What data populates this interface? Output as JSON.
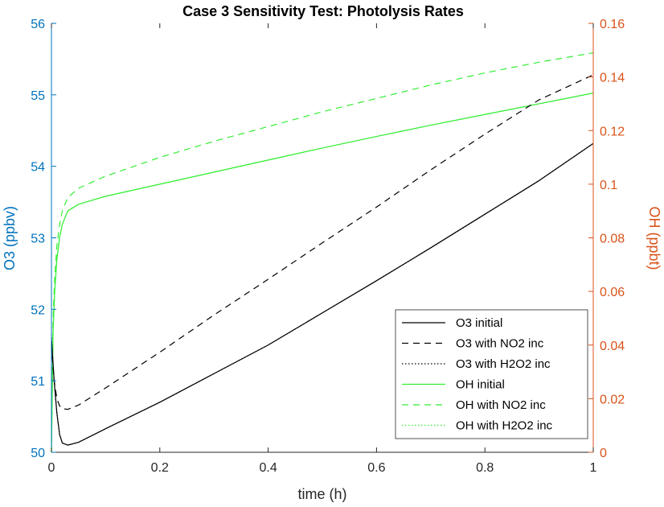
{
  "chart_data": {
    "type": "line",
    "title": "Case 3 Sensitivity Test: Photolysis Rates",
    "xlabel": "time (h)",
    "ylabel_left": "O3 (ppbv)",
    "ylabel_right": "OH (ppbt)",
    "xlim": [
      0,
      1
    ],
    "ylim_left": [
      50,
      56
    ],
    "ylim_right": [
      0,
      0.16
    ],
    "x_ticks": [
      "0",
      "0.2",
      "0.4",
      "0.6",
      "0.8",
      "1"
    ],
    "y_left_ticks": [
      "50",
      "51",
      "52",
      "53",
      "54",
      "55",
      "56"
    ],
    "y_right_ticks": [
      "0",
      "0.02",
      "0.04",
      "0.06",
      "0.08",
      "0.1",
      "0.12",
      "0.14",
      "0.16"
    ],
    "grid": false,
    "legend_position": "bottom-right",
    "colors": {
      "left_axis": "#0072BD",
      "right_axis": "#D95319",
      "o3": "#000000",
      "oh": "#33EE33"
    },
    "series": [
      {
        "name": "O3 initial",
        "axis": "left",
        "color": "#000000",
        "dash": "solid",
        "x": [
          0,
          0.005,
          0.01,
          0.015,
          0.02,
          0.03,
          0.05,
          0.1,
          0.2,
          0.3,
          0.4,
          0.5,
          0.6,
          0.7,
          0.8,
          0.9,
          1.0
        ],
        "y": [
          51.6,
          51.0,
          50.55,
          50.25,
          50.13,
          50.1,
          50.14,
          50.33,
          50.7,
          51.1,
          51.5,
          51.95,
          52.4,
          52.86,
          53.33,
          53.8,
          54.32
        ]
      },
      {
        "name": "O3 with NO2 inc",
        "axis": "left",
        "color": "#000000",
        "dash": "8,6",
        "x": [
          0,
          0.005,
          0.01,
          0.015,
          0.02,
          0.03,
          0.05,
          0.1,
          0.2,
          0.3,
          0.4,
          0.5,
          0.6,
          0.7,
          0.8,
          0.9,
          1.0
        ],
        "y": [
          51.5,
          51.0,
          50.75,
          50.65,
          50.61,
          50.6,
          50.66,
          50.9,
          51.4,
          51.92,
          52.42,
          52.93,
          53.43,
          53.95,
          54.45,
          54.93,
          55.28
        ]
      },
      {
        "name": "O3 with H2O2 inc",
        "axis": "left",
        "color": "#000000",
        "dash": "1.5,2.5",
        "x": [
          0,
          0.005,
          0.01,
          0.015,
          0.02,
          0.03,
          0.05,
          0.1,
          0.2,
          0.3,
          0.4,
          0.5,
          0.6,
          0.7,
          0.8,
          0.9,
          1.0
        ],
        "y": [
          51.6,
          51.0,
          50.55,
          50.25,
          50.13,
          50.1,
          50.14,
          50.33,
          50.7,
          51.1,
          51.5,
          51.95,
          52.4,
          52.86,
          53.33,
          53.8,
          54.32
        ]
      },
      {
        "name": "OH initial",
        "axis": "right",
        "color": "#33EE33",
        "dash": "solid",
        "x": [
          0,
          0.003,
          0.006,
          0.01,
          0.015,
          0.02,
          0.03,
          0.05,
          0.1,
          0.2,
          0.3,
          0.4,
          0.5,
          0.6,
          0.7,
          0.8,
          0.9,
          1.0
        ],
        "y": [
          0.0,
          0.045,
          0.06,
          0.072,
          0.08,
          0.085,
          0.09,
          0.0925,
          0.0955,
          0.1,
          0.1045,
          0.109,
          0.1135,
          0.1178,
          0.122,
          0.126,
          0.13,
          0.134
        ]
      },
      {
        "name": "OH with NO2 inc",
        "axis": "right",
        "color": "#33EE33",
        "dash": "8,6",
        "x": [
          0,
          0.003,
          0.006,
          0.01,
          0.015,
          0.02,
          0.03,
          0.05,
          0.1,
          0.2,
          0.3,
          0.4,
          0.5,
          0.6,
          0.7,
          0.8,
          0.9,
          1.0
        ],
        "y": [
          0.0,
          0.05,
          0.065,
          0.077,
          0.085,
          0.09,
          0.095,
          0.0985,
          0.103,
          0.11,
          0.116,
          0.1215,
          0.127,
          0.132,
          0.137,
          0.1415,
          0.1455,
          0.149
        ]
      },
      {
        "name": "OH with H2O2 inc",
        "axis": "right",
        "color": "#33EE33",
        "dash": "1.5,2.5",
        "x": [
          0,
          0.003,
          0.006,
          0.01,
          0.015,
          0.02,
          0.03,
          0.05,
          0.1,
          0.2,
          0.3,
          0.4,
          0.5,
          0.6,
          0.7,
          0.8,
          0.9,
          1.0
        ],
        "y": [
          0.0,
          0.045,
          0.06,
          0.072,
          0.08,
          0.085,
          0.09,
          0.0925,
          0.0955,
          0.1,
          0.1045,
          0.109,
          0.1135,
          0.1178,
          0.122,
          0.126,
          0.13,
          0.134
        ]
      }
    ]
  }
}
